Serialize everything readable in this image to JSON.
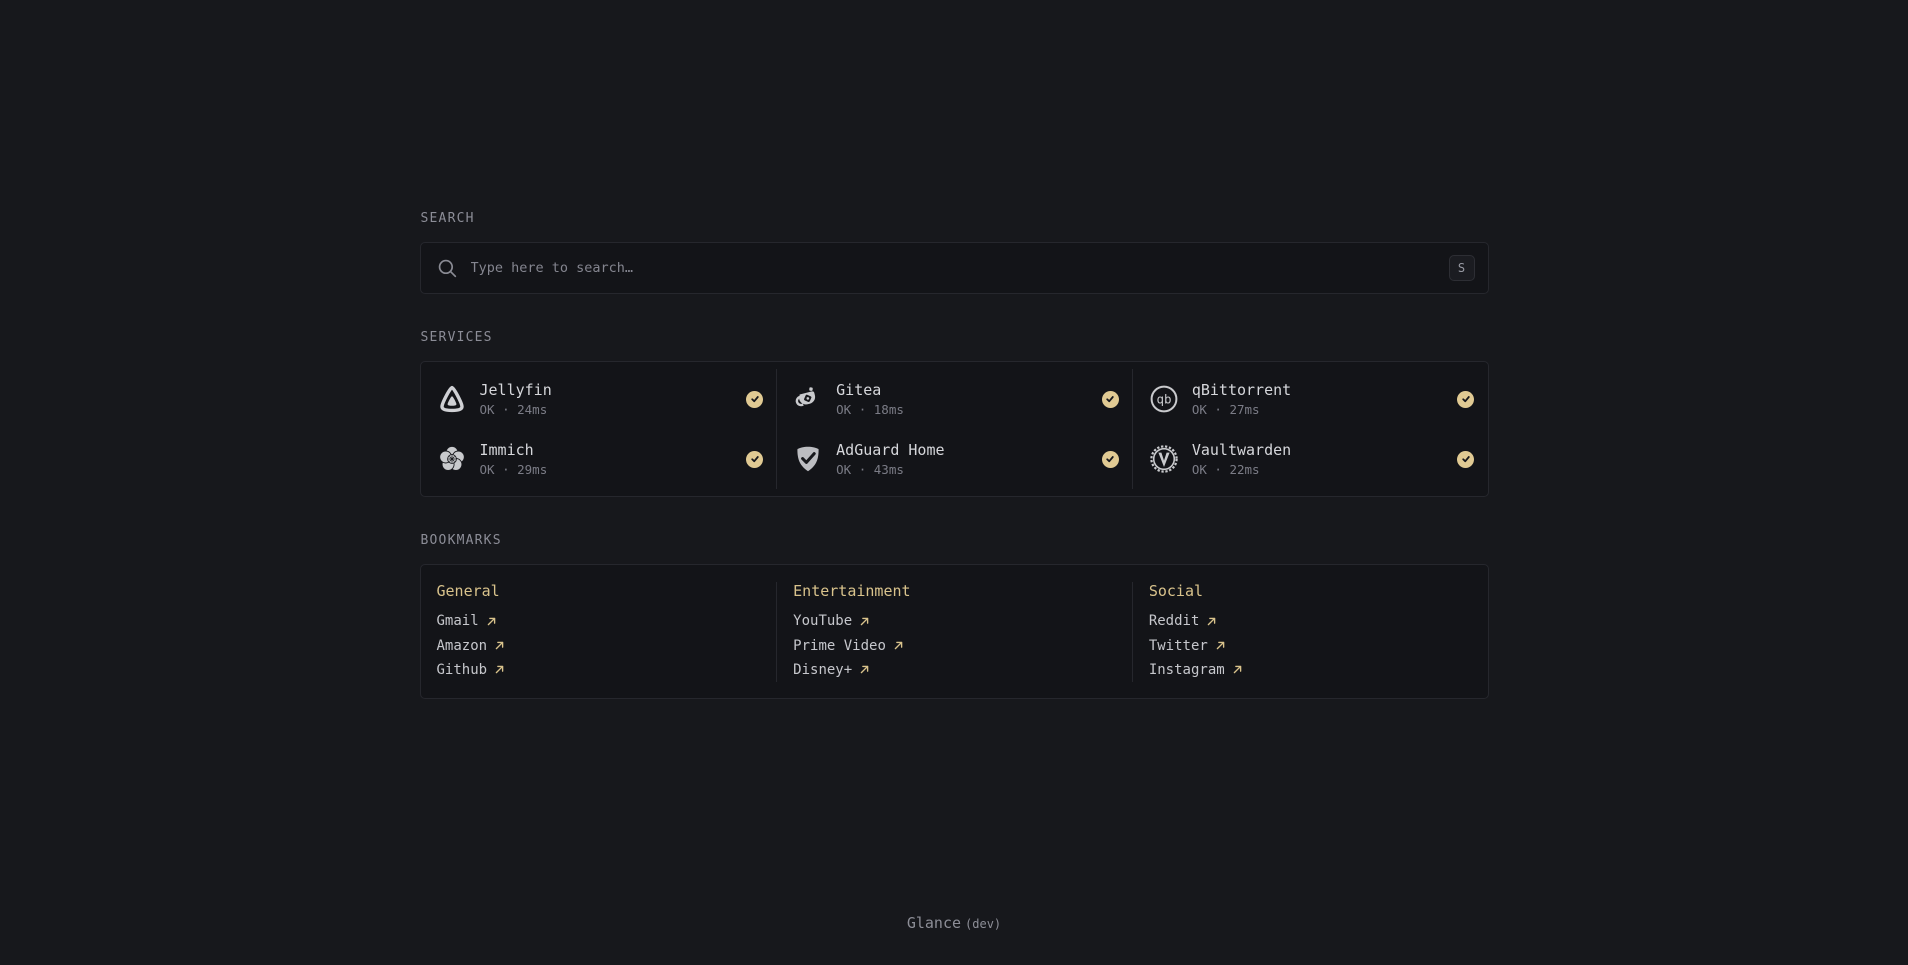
{
  "search": {
    "section_label": "SEARCH",
    "placeholder": "Type here to search…",
    "key_hint": "S",
    "icon": "search-icon"
  },
  "services": {
    "section_label": "SERVICES",
    "status_badge_icon": "check-icon",
    "items": [
      {
        "name": "Jellyfin",
        "status": "OK · 24ms",
        "icon": "jellyfin-icon"
      },
      {
        "name": "Gitea",
        "status": "OK · 18ms",
        "icon": "gitea-icon"
      },
      {
        "name": "qBittorrent",
        "status": "OK · 27ms",
        "icon": "qbittorrent-icon"
      },
      {
        "name": "Immich",
        "status": "OK · 29ms",
        "icon": "immich-icon"
      },
      {
        "name": "AdGuard Home",
        "status": "OK · 43ms",
        "icon": "adguard-home-icon"
      },
      {
        "name": "Vaultwarden",
        "status": "OK · 22ms",
        "icon": "vaultwarden-icon"
      }
    ]
  },
  "bookmarks": {
    "section_label": "BOOKMARKS",
    "link_icon": "external-link-arrow-icon",
    "groups": [
      {
        "title": "General",
        "links": [
          "Gmail",
          "Amazon",
          "Github"
        ]
      },
      {
        "title": "Entertainment",
        "links": [
          "YouTube",
          "Prime Video",
          "Disney+"
        ]
      },
      {
        "title": "Social",
        "links": [
          "Reddit",
          "Twitter",
          "Instagram"
        ]
      }
    ]
  },
  "footer": {
    "name": "Glance",
    "suffix": "(dev)"
  },
  "colors": {
    "background": "#17181c",
    "panel": "#131418",
    "border": "#26272d",
    "accent": "#d9c38c",
    "status_ok_badge": "#e0ca93",
    "text_primary": "#d6d7db",
    "text_muted": "#7b7c86"
  }
}
